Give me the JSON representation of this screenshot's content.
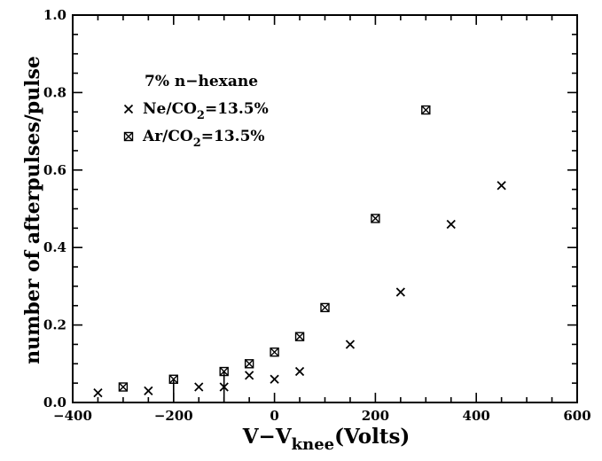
{
  "chart_data": {
    "type": "scatter",
    "title": "",
    "xlabel_main": "V−V",
    "xlabel_sub": "knee",
    "xlabel_tail": "(Volts)",
    "ylabel": "number of afterpulses/pulse",
    "xlim": [
      -400,
      600
    ],
    "ylim": [
      0.0,
      1.0
    ],
    "x_major_ticks": [
      -400,
      -200,
      0,
      200,
      400,
      600
    ],
    "x_tick_labels": [
      "−400",
      "−200",
      "0",
      "200",
      "400",
      "600"
    ],
    "x_minor_step": 50,
    "y_major_ticks": [
      0.0,
      0.2,
      0.4,
      0.6,
      0.8,
      1.0
    ],
    "y_tick_labels": [
      "0.0",
      "0.2",
      "0.4",
      "0.6",
      "0.8",
      "1.0"
    ],
    "y_minor_step": 0.05,
    "grid": false,
    "legend_placement": "top-left",
    "legend_title": "7% n−hexane",
    "series": [
      {
        "name": "Ne/CO₂=13.5%",
        "legend_prefix": "Ne/CO",
        "legend_sub": "2",
        "legend_suffix": "=13.5%",
        "marker": "x",
        "x": [
          -350,
          -250,
          -150,
          -100,
          -50,
          0,
          50,
          150,
          250,
          350,
          450
        ],
        "y": [
          0.025,
          0.03,
          0.04,
          0.04,
          0.07,
          0.06,
          0.08,
          0.15,
          0.285,
          0.46,
          0.56
        ]
      },
      {
        "name": "Ar/CO₂=13.5%",
        "legend_prefix": "Ar/CO",
        "legend_sub": "2",
        "legend_suffix": "=13.5%",
        "marker": "boxed-x",
        "x": [
          -300,
          -200,
          -100,
          -50,
          0,
          50,
          100,
          200,
          300
        ],
        "y": [
          0.04,
          0.06,
          0.08,
          0.1,
          0.13,
          0.17,
          0.245,
          0.475,
          0.755
        ]
      }
    ],
    "error_bars": [
      {
        "x": -200,
        "y_low": 0.0,
        "y_high": 0.06
      },
      {
        "x": -100,
        "y_low": 0.0,
        "y_high": 0.08
      }
    ]
  }
}
